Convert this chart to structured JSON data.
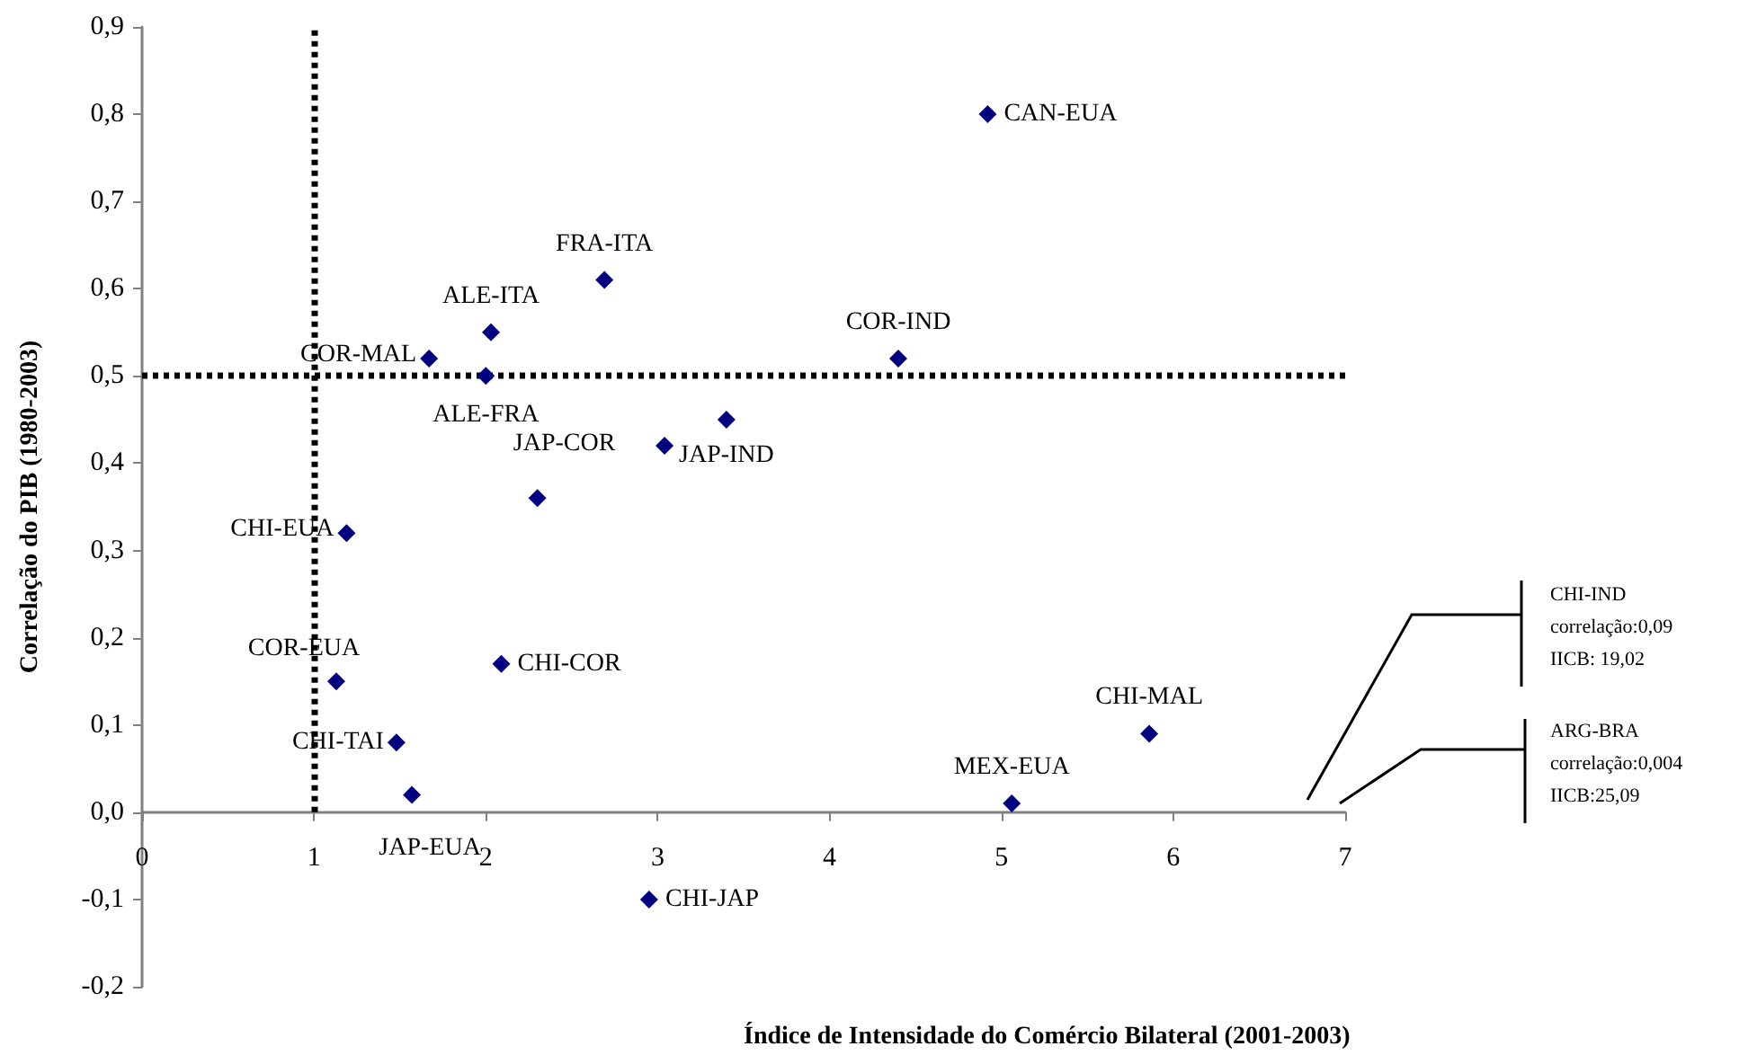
{
  "chart_data": {
    "type": "scatter",
    "xlabel": "Índice de Intensidade do Comércio Bilateral (2001-2003)",
    "ylabel": "Correlação do PIB (1980-2003)",
    "x": [
      4.92,
      2.69,
      2.03,
      1.67,
      2.0,
      4.4,
      3.4,
      2.3,
      1.19,
      1.13,
      2.09,
      1.48,
      1.57,
      2.95,
      5.06,
      5.86,
      3.04
    ],
    "values": [
      0.8,
      0.61,
      0.55,
      0.52,
      0.5,
      0.52,
      0.45,
      0.36,
      0.32,
      0.15,
      0.17,
      0.08,
      0.02,
      -0.1,
      0.01,
      0.09,
      0.42
    ],
    "color": "#000080",
    "marker": "diamond",
    "grid": false,
    "xlim": [
      0,
      7
    ],
    "xticks": [
      0,
      1,
      2,
      3,
      4,
      5,
      6,
      7
    ],
    "ylim": [
      -0.2,
      0.9
    ],
    "yticks": [
      {
        "value": -0.2,
        "label": "-0,2"
      },
      {
        "value": -0.1,
        "label": "-0,1"
      },
      {
        "value": 0,
        "label": "0,0"
      },
      {
        "value": 0.1,
        "label": "0,1"
      },
      {
        "value": 0.2,
        "label": "0,2"
      },
      {
        "value": 0.3,
        "label": "0,3"
      },
      {
        "value": 0.4,
        "label": "0,4"
      },
      {
        "value": 0.5,
        "label": "0,5"
      },
      {
        "value": 0.6,
        "label": "0,6"
      },
      {
        "value": 0.7,
        "label": "0,7"
      },
      {
        "value": 0.8,
        "label": "0,8"
      },
      {
        "value": 0.9,
        "label": "0,9"
      }
    ],
    "ref_lines": [
      {
        "axis": "x",
        "value": 1,
        "color": "#000000",
        "line_style": "dotted"
      },
      {
        "axis": "y",
        "value": 0.5,
        "color": "#000000",
        "line_style": "dotted"
      }
    ],
    "annotations": [
      {
        "text": "CAN-EUA",
        "x": 4.92,
        "y": 0.8
      },
      {
        "text": "FRA-ITA",
        "x": 2.69,
        "y": 0.61
      },
      {
        "text": "ALE-ITA",
        "x": 2.03,
        "y": 0.55
      },
      {
        "text": "COR-MAL",
        "x": 1.67,
        "y": 0.52
      },
      {
        "text": "ALE-FRA",
        "x": 2.0,
        "y": 0.5
      },
      {
        "text": "COR-IND",
        "x": 4.4,
        "y": 0.52
      },
      {
        "text": "JAP-IND",
        "x": 3.4,
        "y": 0.45
      },
      {
        "text": "JAP-COR",
        "x": 2.3,
        "y": 0.36
      },
      {
        "text": "CHI-EUA",
        "x": 1.19,
        "y": 0.32
      },
      {
        "text": "COR-EUA",
        "x": 1.13,
        "y": 0.15
      },
      {
        "text": "CHI-COR",
        "x": 2.09,
        "y": 0.17
      },
      {
        "text": "CHI-TAI",
        "x": 1.48,
        "y": 0.08
      },
      {
        "text": "JAP-EUA",
        "x": 1.57,
        "y": 0.02
      },
      {
        "text": "CHI-JAP",
        "x": 2.95,
        "y": -0.1
      },
      {
        "text": "MEX-EUA",
        "x": 5.06,
        "y": 0.01
      },
      {
        "text": "CHI-MAL",
        "x": 5.86,
        "y": 0.09
      },
      "CHI-IND\ncorrelação:0,09\nIICB: 19,02",
      "ARG-BRA\ncorrelação:0,004\nIICB:25,09"
    ]
  }
}
